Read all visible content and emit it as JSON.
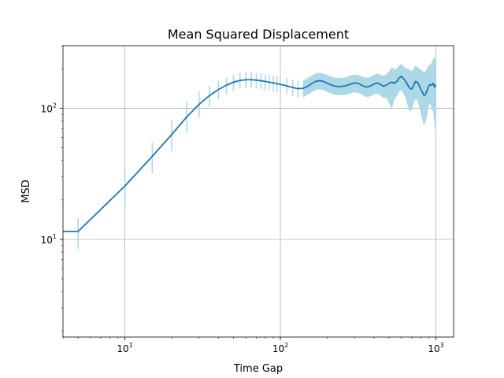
{
  "chart_data": {
    "type": "line",
    "title": "Mean Squared Displacement",
    "xlabel": "Time Gap",
    "ylabel": "MSD",
    "xscale": "log",
    "yscale": "log",
    "xlim": [
      4,
      1300
    ],
    "ylim": [
      1.8,
      300
    ],
    "grid": true,
    "line_color": "#1f77b4",
    "error_color": "#add8e6",
    "x_major_ticks": [
      {
        "value": 10,
        "base": "10",
        "exp": "1"
      },
      {
        "value": 100,
        "base": "10",
        "exp": "2"
      },
      {
        "value": 1000,
        "base": "10",
        "exp": "3"
      }
    ],
    "y_major_ticks": [
      {
        "value": 10,
        "base": "10",
        "exp": "1"
      },
      {
        "value": 100,
        "base": "10",
        "exp": "2"
      }
    ],
    "series": [
      {
        "x": [
          4,
          5,
          10,
          15,
          20,
          25,
          30,
          35,
          40,
          45,
          50,
          55,
          60,
          65,
          70,
          75,
          80,
          85,
          90,
          95,
          100,
          110,
          120,
          130,
          140,
          150,
          160,
          170,
          180,
          190,
          200,
          220,
          240,
          260,
          280,
          300,
          320,
          340,
          360,
          380,
          400,
          420,
          440,
          460,
          480,
          500,
          520,
          540,
          560,
          580,
          600,
          620,
          640,
          660,
          680,
          700,
          720,
          740,
          760,
          780,
          800,
          820,
          840,
          860,
          880,
          900,
          920,
          940,
          960,
          980,
          1000
        ],
        "y": [
          11.5,
          11.5,
          25.5,
          43,
          63,
          86,
          107,
          125,
          139,
          150,
          158,
          163,
          165,
          165,
          164,
          162,
          160,
          158,
          156,
          154,
          152,
          148,
          144,
          141,
          142,
          147,
          155,
          161,
          162,
          160,
          155,
          148,
          146,
          148,
          152,
          156,
          154,
          148,
          145,
          148,
          153,
          156,
          152,
          147,
          150,
          155,
          158,
          155,
          160,
          170,
          175,
          168,
          160,
          150,
          142,
          140,
          150,
          160,
          158,
          150,
          140,
          132,
          125,
          128,
          138,
          148,
          152,
          150,
          155,
          145,
          152
        ],
        "lower": [
          11.5,
          8.5,
          17,
          32,
          47,
          66,
          85,
          103,
          117,
          128,
          136,
          141,
          143,
          143,
          142,
          140,
          138,
          137,
          135,
          133,
          131,
          128,
          124,
          121,
          122,
          127,
          134,
          139,
          140,
          138,
          134,
          128,
          126,
          127,
          130,
          133,
          131,
          126,
          122,
          124,
          128,
          130,
          126,
          120,
          121,
          110,
          100,
          118,
          125,
          135,
          138,
          130,
          120,
          105,
          95,
          98,
          110,
          118,
          115,
          105,
          92,
          82,
          75,
          80,
          92,
          105,
          110,
          100,
          95,
          80,
          62
        ],
        "upper": [
          11.5,
          14.5,
          33,
          55,
          82,
          111,
          134,
          149,
          162,
          172,
          180,
          186,
          188,
          188,
          186,
          184,
          182,
          180,
          178,
          176,
          174,
          170,
          165,
          162,
          163,
          169,
          177,
          184,
          186,
          183,
          178,
          171,
          169,
          171,
          176,
          180,
          178,
          172,
          170,
          173,
          179,
          183,
          180,
          176,
          180,
          190,
          205,
          196,
          200,
          210,
          216,
          208,
          200,
          200,
          195,
          190,
          198,
          210,
          205,
          200,
          196,
          192,
          188,
          190,
          200,
          210,
          215,
          220,
          235,
          240,
          250
        ],
        "errorbars_discrete_until": 140
      }
    ]
  }
}
